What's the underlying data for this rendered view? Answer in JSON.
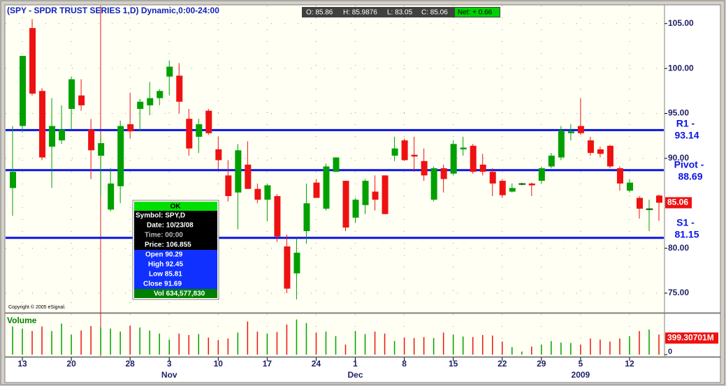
{
  "header": {
    "title": "(SPY - SPDR TRUST SERIES 1,D) Dynamic,0:00-24:00",
    "quote": [
      "O: 85.86",
      "H: 85.9876",
      "L: 83.05",
      "C: 85.06"
    ],
    "net": "Net: + 0.66"
  },
  "copyright": "Copyright © 2005 eSignal.",
  "tooltip": {
    "button": "OK",
    "rows": [
      "Symbol: SPY,D",
      "Date: 10/23/08",
      "Time: 00:00",
      "Price: 106.855"
    ],
    "values": [
      "Open 90.29",
      "High 92.45",
      "Low 85.81",
      "Close 91.69"
    ],
    "volume": "Vol 634,577,830"
  },
  "chart_data": {
    "type": "candlestick",
    "up_color": "#00a000",
    "down_color": "#ee1111",
    "grid": true,
    "categories": [
      null,
      "13",
      null,
      null,
      null,
      null,
      "20",
      null,
      null,
      null,
      null,
      null,
      "28",
      null,
      null,
      null,
      "3",
      null,
      null,
      null,
      null,
      "10",
      null,
      null,
      null,
      null,
      "17",
      null,
      null,
      null,
      null,
      "24",
      null,
      null,
      null,
      "1",
      null,
      null,
      null,
      null,
      "8",
      null,
      null,
      null,
      null,
      "15",
      null,
      null,
      null,
      null,
      "22",
      null,
      null,
      null,
      "29",
      null,
      null,
      null,
      "5",
      null,
      null,
      null,
      null,
      "12",
      null,
      null,
      null
    ],
    "months": [
      null,
      null,
      null,
      null,
      null,
      null,
      null,
      null,
      null,
      null,
      null,
      null,
      null,
      null,
      null,
      null,
      "Nov",
      null,
      null,
      null,
      null,
      null,
      null,
      null,
      null,
      null,
      null,
      null,
      null,
      null,
      null,
      null,
      null,
      null,
      null,
      "Dec",
      null,
      null,
      null,
      null,
      null,
      null,
      null,
      null,
      null,
      null,
      null,
      null,
      null,
      null,
      null,
      null,
      null,
      null,
      null,
      null,
      null,
      null,
      "2009",
      null,
      null,
      null,
      null,
      null,
      null,
      null,
      null
    ],
    "open": [
      86.7,
      93.6,
      104.5,
      97.5,
      91.3,
      92.0,
      95.5,
      97.0,
      93.2,
      90.29,
      84.3,
      86.9,
      93.8,
      95.5,
      95.9,
      96.7,
      99.1,
      99.2,
      94.4,
      92.4,
      95.3,
      91.0,
      88.1,
      86.2,
      89.3,
      86.6,
      85.4,
      85.8,
      80.2,
      77.2,
      81.9,
      87.3,
      84.4,
      88.5,
      87.5,
      83.4,
      84.8,
      86.3,
      88.1,
      90.3,
      92.0,
      90.4,
      89.7,
      85.4,
      88.9,
      88.3,
      91.0,
      91.4,
      89.3,
      88.5,
      87.5,
      86.3,
      87.1,
      87.2,
      87.5,
      89.1,
      90.1,
      92.8,
      93.6,
      92.0,
      91.0,
      91.4,
      88.9,
      86.4,
      85.6,
      84.3,
      85.86
    ],
    "high": [
      93.6,
      101.4,
      105.5,
      97.8,
      96.7,
      95.9,
      99.1,
      98.8,
      94.4,
      92.45,
      88.9,
      94.2,
      97.3,
      96.6,
      98.5,
      97.7,
      100.9,
      100.6,
      95.5,
      94.4,
      95.5,
      92.4,
      89.8,
      91.6,
      91.9,
      87.2,
      87.2,
      86.0,
      81.5,
      81.1,
      87.2,
      87.7,
      89.4,
      90.1,
      87.5,
      85.6,
      87.7,
      88.1,
      88.1,
      92.4,
      92.2,
      92.4,
      91.1,
      89.1,
      89.3,
      92.0,
      92.4,
      91.6,
      90.5,
      88.9,
      87.7,
      87.2,
      87.3,
      87.3,
      89.1,
      90.6,
      93.6,
      93.8,
      96.7,
      92.4,
      91.3,
      91.5,
      89.1,
      87.7,
      85.8,
      85.4,
      85.9876
    ],
    "low": [
      83.6,
      92.9,
      97.0,
      89.8,
      86.7,
      91.6,
      93.2,
      95.3,
      87.7,
      85.81,
      84.1,
      85.0,
      92.2,
      93.0,
      94.8,
      95.9,
      97.0,
      95.0,
      90.3,
      90.6,
      92.6,
      88.8,
      85.2,
      82.1,
      86.6,
      85.0,
      83.0,
      80.7,
      75.0,
      74.3,
      80.5,
      85.6,
      84.2,
      88.5,
      81.9,
      82.8,
      83.8,
      84.2,
      83.8,
      89.7,
      89.7,
      88.5,
      87.5,
      85.2,
      86.2,
      88.1,
      90.3,
      88.3,
      88.1,
      85.8,
      85.6,
      86.2,
      87.0,
      85.8,
      87.2,
      88.9,
      89.8,
      92.0,
      92.6,
      90.3,
      90.1,
      88.9,
      86.4,
      86.2,
      83.3,
      81.9,
      83.05
    ],
    "close": [
      88.5,
      101.4,
      97.2,
      90.1,
      93.6,
      93.2,
      98.8,
      95.9,
      90.9,
      91.69,
      87.2,
      93.6,
      93.0,
      96.3,
      96.7,
      97.5,
      100.2,
      96.3,
      91.1,
      93.8,
      92.8,
      89.8,
      85.8,
      90.9,
      86.6,
      85.4,
      87.0,
      81.3,
      75.5,
      79.5,
      85.0,
      85.6,
      89.1,
      90.1,
      82.3,
      85.4,
      87.5,
      85.4,
      83.8,
      91.1,
      89.8,
      90.2,
      88.1,
      88.9,
      87.7,
      91.6,
      91.2,
      88.5,
      88.5,
      87.2,
      85.9,
      86.7,
      87.2,
      87.0,
      88.9,
      90.3,
      93.1,
      93.0,
      92.8,
      90.6,
      90.5,
      89.1,
      87.2,
      87.3,
      84.4,
      84.4,
      85.06
    ],
    "ylim": [
      72.9,
      107.0
    ],
    "yticks": [
      {
        "value": 75,
        "label": "75.00"
      },
      {
        "value": 80,
        "label": "80.00"
      },
      {
        "value": 90,
        "label": "90.00"
      },
      {
        "value": 95,
        "label": "95.00"
      },
      {
        "value": 100,
        "label": "100.00"
      },
      {
        "value": 105,
        "label": "105.00"
      }
    ],
    "last_label": "85.06",
    "levels": [
      {
        "name": "R1 -",
        "value": 93.14,
        "color": "#0a14e6"
      },
      {
        "name": "Pivot -",
        "value": 88.69,
        "color": "#0a14e6"
      },
      {
        "name": "S1 -",
        "value": 81.15,
        "color": "#0a14e6"
      }
    ],
    "volume": {
      "name": "Volume",
      "ylim": [
        0,
        780
      ],
      "yticks": [
        0
      ],
      "values": [
        560,
        520,
        470,
        560,
        470,
        620,
        400,
        480,
        570,
        540,
        520,
        460,
        580,
        540,
        480,
        420,
        300,
        420,
        390,
        410,
        340,
        290,
        320,
        440,
        660,
        460,
        420,
        450,
        600,
        700,
        630,
        440,
        460,
        370,
        200,
        470,
        410,
        460,
        420,
        270,
        340,
        330,
        350,
        330,
        440,
        400,
        360,
        350,
        390,
        380,
        260,
        150,
        60,
        160,
        200,
        270,
        240,
        230,
        200,
        320,
        300,
        260,
        320,
        370,
        470,
        500,
        399.30701
      ],
      "value_labels": [
        null,
        null,
        null,
        null,
        null,
        null,
        null,
        null,
        null,
        null,
        null,
        null,
        null,
        null,
        null,
        null,
        null,
        null,
        null,
        null,
        null,
        null,
        null,
        null,
        null,
        null,
        null,
        null,
        null,
        null,
        null,
        null,
        null,
        null,
        null,
        null,
        null,
        null,
        null,
        null,
        null,
        null,
        null,
        null,
        null,
        null,
        null,
        null,
        null,
        null,
        null,
        null,
        null,
        null,
        null,
        null,
        null,
        null,
        null,
        null,
        null,
        null,
        null,
        null,
        null,
        null,
        "399.30701M"
      ]
    }
  }
}
